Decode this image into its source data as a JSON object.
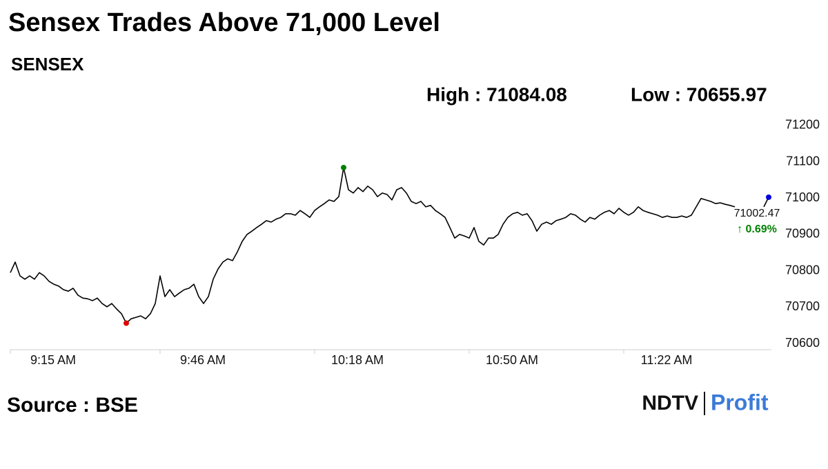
{
  "chart_data": {
    "type": "line",
    "title": "Sensex Trades Above 71,000 Level",
    "subtitle": "SENSEX",
    "high_label": "High : 71084.08",
    "low_label": "Low : 70655.97",
    "change_label": "↑ 0.69%",
    "source": "Source : BSE",
    "logo": [
      "NDTV",
      "Profit"
    ],
    "high_index": 69,
    "low_index": 24,
    "high_color": "#008000",
    "low_color": "#e00000",
    "last_color": "#0000dd",
    "change_color": "#008000",
    "x": [
      "9:15 AM",
      "9:16 AM",
      "9:17 AM",
      "9:18 AM",
      "9:19 AM",
      "9:20 AM",
      "9:21 AM",
      "9:22 AM",
      "9:23 AM",
      "9:24 AM",
      "9:25 AM",
      "9:26 AM",
      "9:27 AM",
      "9:28 AM",
      "9:29 AM",
      "9:30 AM",
      "9:31 AM",
      "9:32 AM",
      "9:33 AM",
      "9:34 AM",
      "9:35 AM",
      "9:36 AM",
      "9:37 AM",
      "9:38 AM",
      "9:39 AM",
      "9:40 AM",
      "9:41 AM",
      "9:42 AM",
      "9:43 AM",
      "9:44 AM",
      "9:45 AM",
      "9:46 AM",
      "9:47 AM",
      "9:48 AM",
      "9:49 AM",
      "9:50 AM",
      "9:51 AM",
      "9:52 AM",
      "9:53 AM",
      "9:54 AM",
      "9:55 AM",
      "9:56 AM",
      "9:57 AM",
      "9:58 AM",
      "9:59 AM",
      "10:00 AM",
      "10:01 AM",
      "10:02 AM",
      "10:03 AM",
      "10:04 AM",
      "10:05 AM",
      "10:06 AM",
      "10:07 AM",
      "10:08 AM",
      "10:09 AM",
      "10:10 AM",
      "10:11 AM",
      "10:12 AM",
      "10:13 AM",
      "10:14 AM",
      "10:15 AM",
      "10:16 AM",
      "10:17 AM",
      "10:18 AM",
      "10:19 AM",
      "10:20 AM",
      "10:21 AM",
      "10:22 AM",
      "10:23 AM",
      "10:24 AM",
      "10:25 AM",
      "10:26 AM",
      "10:27 AM",
      "10:28 AM",
      "10:29 AM",
      "10:30 AM",
      "10:31 AM",
      "10:32 AM",
      "10:33 AM",
      "10:34 AM",
      "10:35 AM",
      "10:36 AM",
      "10:37 AM",
      "10:38 AM",
      "10:39 AM",
      "10:40 AM",
      "10:41 AM",
      "10:42 AM",
      "10:43 AM",
      "10:44 AM",
      "10:45 AM",
      "10:46 AM",
      "10:47 AM",
      "10:48 AM",
      "10:49 AM",
      "10:50 AM",
      "10:51 AM",
      "10:52 AM",
      "10:53 AM",
      "10:54 AM",
      "10:55 AM",
      "10:56 AM",
      "10:57 AM",
      "10:58 AM",
      "10:59 AM",
      "11:00 AM",
      "11:01 AM",
      "11:02 AM",
      "11:03 AM",
      "11:04 AM",
      "11:05 AM",
      "11:06 AM",
      "11:07 AM",
      "11:08 AM",
      "11:09 AM",
      "11:10 AM",
      "11:11 AM",
      "11:12 AM",
      "11:13 AM",
      "11:14 AM",
      "11:15 AM",
      "11:16 AM",
      "11:17 AM",
      "11:18 AM",
      "11:19 AM",
      "11:20 AM",
      "11:21 AM",
      "11:22 AM",
      "11:23 AM",
      "11:24 AM",
      "11:25 AM",
      "11:26 AM",
      "11:27 AM",
      "11:28 AM",
      "11:29 AM",
      "11:30 AM",
      "11:31 AM",
      "11:32 AM",
      "11:33 AM",
      "11:34 AM",
      "11:35 AM",
      "11:36 AM",
      "11:37 AM",
      "11:38 AM",
      "11:39 AM",
      "11:40 AM",
      "11:41 AM",
      "11:42 AM",
      "11:43 AM",
      "11:44 AM",
      "11:45 AM",
      "11:46 AM",
      "11:47 AM",
      "11:48 AM",
      "11:49 AM",
      "11:50 AM",
      "11:51 AM",
      "11:52 AM"
    ],
    "series": [
      {
        "name": "SENSEX",
        "color": "#000000",
        "values": [
          70795,
          70824,
          70786,
          70777,
          70786,
          70777,
          70795,
          70786,
          70771,
          70763,
          70758,
          70748,
          70744,
          70752,
          70733,
          70725,
          70723,
          70718,
          70725,
          70710,
          70701,
          70710,
          70695,
          70682,
          70655.97,
          70668,
          70672,
          70676,
          70668,
          70682,
          70710,
          70786,
          70729,
          70748,
          70729,
          70739,
          70748,
          70752,
          70763,
          70729,
          70710,
          70729,
          70777,
          70805,
          70824,
          70833,
          70828,
          70852,
          70881,
          70900,
          70909,
          70919,
          70928,
          70938,
          70934,
          70942,
          70947,
          70957,
          70957,
          70953,
          70966,
          70957,
          70947,
          70966,
          70976,
          70985,
          70995,
          70991,
          71004,
          71084.08,
          71023,
          71014,
          71029,
          71018,
          71033,
          71023,
          71004,
          71014,
          71010,
          70995,
          71023,
          71029,
          71014,
          70991,
          70985,
          70991,
          70976,
          70980,
          70966,
          70957,
          70947,
          70919,
          70890,
          70900,
          70896,
          70890,
          70919,
          70881,
          70871,
          70890,
          70890,
          70900,
          70928,
          70947,
          70957,
          70961,
          70953,
          70957,
          70938,
          70909,
          70928,
          70934,
          70928,
          70938,
          70942,
          70947,
          70957,
          70953,
          70942,
          70934,
          70947,
          70942,
          70953,
          70961,
          70966,
          70957,
          70972,
          70961,
          70953,
          70961,
          70976,
          70966,
          70961,
          70957,
          70953,
          70947,
          70951,
          70947,
          70947,
          70951,
          70947,
          70953,
          70976,
          70999,
          70995,
          70991,
          70985,
          70987,
          70983,
          70980,
          70976,
          null,
          null,
          null,
          null,
          null,
          70976,
          71002.47
        ]
      }
    ],
    "xticks": [
      "9:15 AM",
      "9:46 AM",
      "10:18 AM",
      "10:50 AM",
      "11:22 AM"
    ],
    "ylim": [
      70583,
      71213
    ],
    "yticks": [
      70600,
      70700,
      70800,
      70900,
      71000,
      71100,
      71200
    ]
  }
}
